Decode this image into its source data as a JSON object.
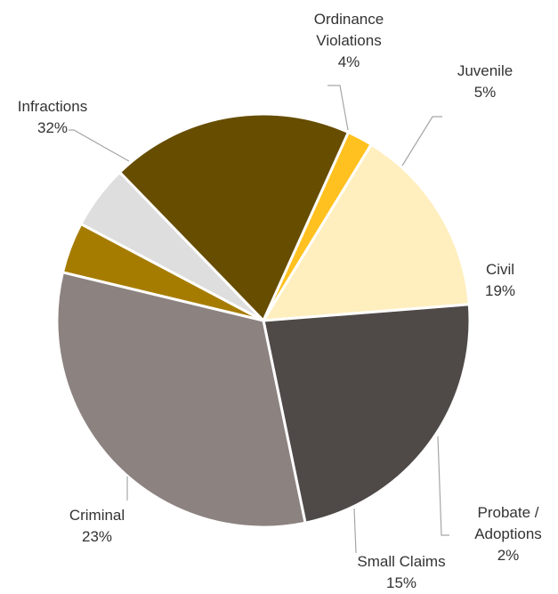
{
  "chart_data": {
    "type": "pie",
    "title": "",
    "slices": [
      {
        "label_lines": [
          "Ordinance",
          "Violations"
        ],
        "pct_text": "4%",
        "value": 4,
        "color": "#a67c00"
      },
      {
        "label_lines": [
          "Juvenile"
        ],
        "pct_text": "5%",
        "value": 5,
        "color": "#dedede"
      },
      {
        "label_lines": [
          "Civil"
        ],
        "pct_text": "19%",
        "value": 19,
        "color": "#664d00"
      },
      {
        "label_lines": [
          "Probate /",
          "Adoptions"
        ],
        "pct_text": "2%",
        "value": 2,
        "color": "#ffc11f"
      },
      {
        "label_lines": [
          "Small Claims"
        ],
        "pct_text": "15%",
        "value": 15,
        "color": "#ffefbf"
      },
      {
        "label_lines": [
          "Criminal"
        ],
        "pct_text": "23%",
        "value": 23,
        "color": "#4f4a48"
      },
      {
        "label_lines": [
          "Infractions"
        ],
        "pct_text": "32%",
        "value": 32,
        "color": "#8c8280"
      }
    ]
  }
}
